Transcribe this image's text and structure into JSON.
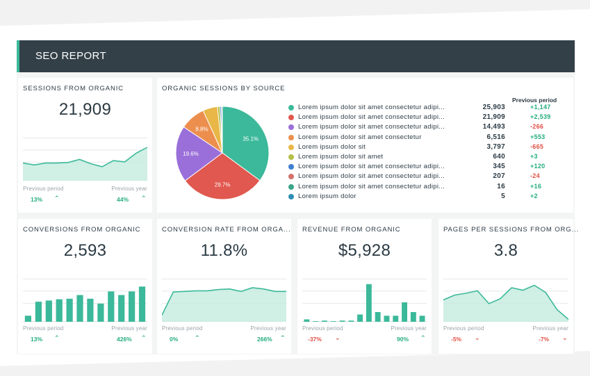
{
  "header": {
    "title": "SEO REPORT"
  },
  "colors": {
    "header_bg": "#334048",
    "accent": "#3bb99a",
    "positive": "#22ad7c",
    "negative": "#e05046",
    "chart_fill": "#c8ece0",
    "chart_line": "#3bb99a"
  },
  "sessions": {
    "title": "SESSIONS FROM ORGANIC",
    "value": "21,909",
    "prev_period_label": "Previous period",
    "prev_year_label": "Previous year",
    "prev_period_value": "13%",
    "prev_year_value": "44%",
    "prev_period_trend": "up",
    "prev_year_trend": "up"
  },
  "organic_sources": {
    "title": "ORGANIC SESSIONS BY SOURCE",
    "previous_period_header": "Previous period",
    "rows": [
      {
        "label": "Lorem ipsum dolor sit amet consectetur adipi...",
        "value": "25,903",
        "change": "+1,147",
        "trend": "positive",
        "color": "#3bb99a"
      },
      {
        "label": "Lorem ipsum dolor sit amet consectetur adipi...",
        "value": "21,909",
        "change": "+2,539",
        "trend": "positive",
        "color": "#e0584f"
      },
      {
        "label": "Lorem ipsum dolor sit amet consectetur adipi...",
        "value": "14,493",
        "change": "-266",
        "trend": "negative",
        "color": "#9a6fd9"
      },
      {
        "label": "Lorem ipsum dolor sit amet consectetur",
        "value": "6,516",
        "change": "+553",
        "trend": "positive",
        "color": "#ec8f4e"
      },
      {
        "label": "Lorem ipsum dolor sit",
        "value": "3,797",
        "change": "-665",
        "trend": "negative",
        "color": "#e9b748"
      },
      {
        "label": "Lorem ipsum dolor sit amet",
        "value": "640",
        "change": "+3",
        "trend": "positive",
        "color": "#b3bf4a"
      },
      {
        "label": "Lorem ipsum dolor sit amet consectetur adipi...",
        "value": "345",
        "change": "+120",
        "trend": "positive",
        "color": "#3f7fd0"
      },
      {
        "label": "Lorem ipsum dolor sit amet consectetur adipi...",
        "value": "207",
        "change": "-24",
        "trend": "negative",
        "color": "#d2736b"
      },
      {
        "label": "Lorem ipsum dolor sit amet consectetur adipi...",
        "value": "16",
        "change": "+16",
        "trend": "positive",
        "color": "#3aa587"
      },
      {
        "label": "Lorem ipsum dolor",
        "value": "5",
        "change": "+2",
        "trend": "positive",
        "color": "#2f8fb3"
      }
    ]
  },
  "conversions": {
    "title": "CONVERSIONS FROM ORGANIC",
    "value": "2,593",
    "prev_period_label": "Previous period",
    "prev_year_label": "Previous year",
    "prev_period_value": "13%",
    "prev_year_value": "426%",
    "prev_period_trend": "up",
    "prev_year_trend": "up"
  },
  "conversion_rate": {
    "title": "CONVERSION RATE FROM ORGA...",
    "value": "11.8%",
    "prev_period_label": "Previous period",
    "prev_year_label": "Previous year",
    "prev_period_value": "0%",
    "prev_year_value": "266%",
    "prev_period_trend": "up",
    "prev_year_trend": "up"
  },
  "revenue": {
    "title": "REVENUE FROM ORGANIC",
    "value": "$5,928",
    "prev_period_label": "Previous period",
    "prev_year_label": "Previous year",
    "prev_period_value": "-37%",
    "prev_year_value": "90%",
    "prev_period_trend": "down",
    "prev_year_trend": "up"
  },
  "pages_per_session": {
    "title": "PAGES PER SESSIONS FROM ORG...",
    "value": "3.8",
    "prev_period_label": "Previous period",
    "prev_year_label": "Previous year",
    "prev_period_value": "-5%",
    "prev_year_value": "-7%",
    "prev_period_trend": "down",
    "prev_year_trend": "down"
  },
  "chart_data": [
    {
      "id": "sessions",
      "type": "area",
      "title": "",
      "x": [
        1,
        2,
        3,
        4,
        5,
        6,
        7,
        8,
        9,
        10,
        11,
        12
      ],
      "values": [
        29,
        26,
        29,
        29,
        30,
        35,
        28,
        23,
        33,
        31,
        45,
        55
      ],
      "ylim": [
        0,
        80
      ],
      "grid": true
    },
    {
      "id": "organic_sources",
      "type": "pie",
      "title": "",
      "slices": [
        {
          "label_ref": "organic_sources.rows.0",
          "value": 35.1
        },
        {
          "label_ref": "organic_sources.rows.1",
          "value": 29.7
        },
        {
          "label_ref": "organic_sources.rows.2",
          "value": 19.6
        },
        {
          "label_ref": "organic_sources.rows.3",
          "value": 8.8
        },
        {
          "label_ref": "organic_sources.rows.4",
          "value": 5.1
        },
        {
          "label_ref": "organic_sources.rows.5",
          "value": 0.9
        },
        {
          "label_ref": "organic_sources.rows.6",
          "value": 0.5
        },
        {
          "label_ref": "organic_sources.rows.7",
          "value": 0.3
        }
      ],
      "slice_labels": [
        "35.1%",
        "29.7%",
        "19.6%",
        "8.8%"
      ]
    },
    {
      "id": "conversions",
      "type": "bar",
      "title": "",
      "values": [
        10,
        33,
        35,
        37,
        38,
        44,
        38,
        30,
        50,
        44,
        50,
        58
      ],
      "ylim": [
        0,
        80
      ],
      "grid": true
    },
    {
      "id": "conversion_rate",
      "type": "area",
      "title": "",
      "values": [
        11,
        49,
        50,
        51,
        51,
        53,
        54,
        50,
        56,
        54,
        50,
        50
      ],
      "ylim": [
        0,
        80
      ],
      "grid": true
    },
    {
      "id": "revenue",
      "type": "bar",
      "title": "",
      "values": [
        4,
        1,
        2,
        1,
        2,
        2,
        12,
        62,
        16,
        10,
        10,
        32,
        16,
        10
      ],
      "ylim": [
        0,
        80
      ],
      "grid": true
    },
    {
      "id": "pages_per_session",
      "type": "area",
      "title": "",
      "values": [
        36,
        44,
        47,
        51,
        30,
        38,
        56,
        52,
        60,
        48,
        20,
        4
      ],
      "ylim": [
        0,
        80
      ],
      "grid": true
    }
  ]
}
